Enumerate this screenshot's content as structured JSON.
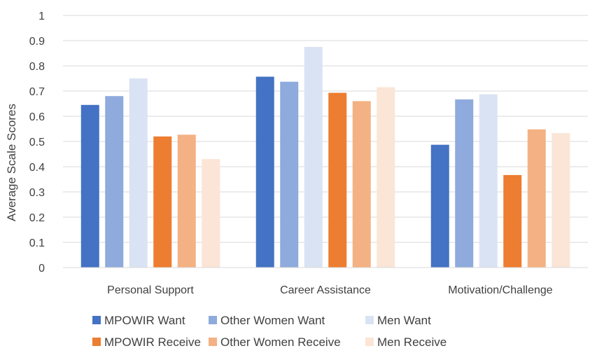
{
  "chart_data": {
    "type": "bar",
    "title": "",
    "xlabel": "",
    "ylabel": "Average Scale Scores",
    "ylim": [
      0,
      1
    ],
    "yticks": [
      "0",
      "0.1",
      "0.2",
      "0.3",
      "0.4",
      "0.5",
      "0.6",
      "0.7",
      "0.8",
      "0.9",
      "1"
    ],
    "grid": true,
    "legend_position": "bottom",
    "categories": [
      "Personal Support",
      "Career Assistance",
      "Motivation/Challenge"
    ],
    "series": [
      {
        "name": "MPOWIR Want",
        "color": "#4472c4",
        "values": [
          0.645,
          0.757,
          0.487
        ]
      },
      {
        "name": "Other Women Want",
        "color": "#8faadc",
        "values": [
          0.68,
          0.737,
          0.667
        ]
      },
      {
        "name": "Men Want",
        "color": "#dae3f3",
        "values": [
          0.75,
          0.875,
          0.687
        ]
      },
      {
        "name": "MPOWIR Receive",
        "color": "#ed7d31",
        "values": [
          0.52,
          0.693,
          0.367
        ]
      },
      {
        "name": "Other Women Receive",
        "color": "#f4b183",
        "values": [
          0.527,
          0.66,
          0.548
        ]
      },
      {
        "name": "Men Receive",
        "color": "#fbe5d6",
        "values": [
          0.43,
          0.715,
          0.533
        ]
      }
    ]
  }
}
